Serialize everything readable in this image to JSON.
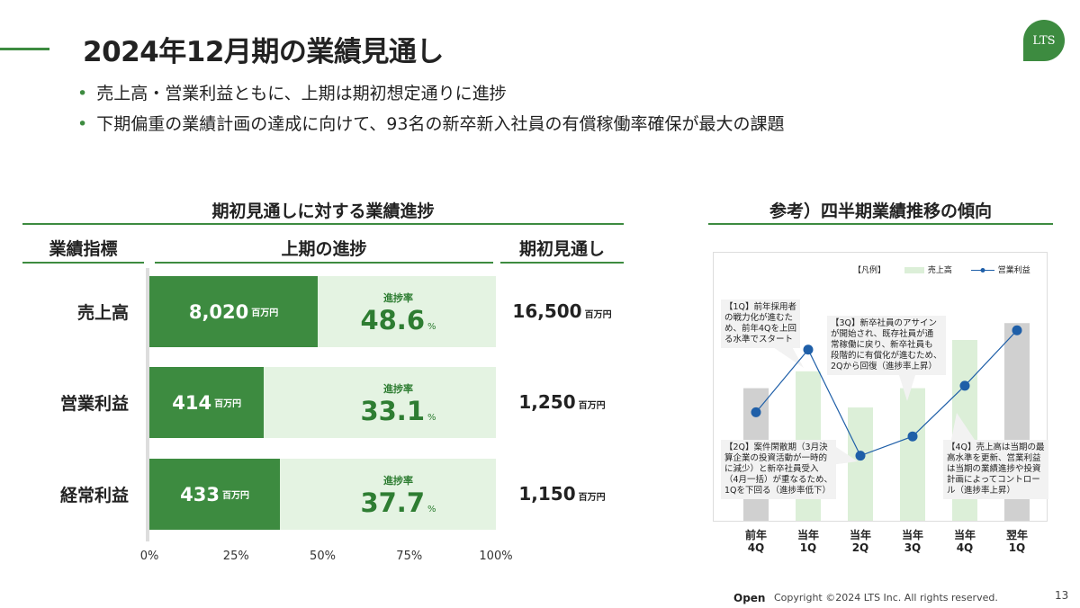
{
  "title": "2024年12月期の業績見通し",
  "logo": "LTS",
  "bullets": [
    "売上高・営業利益ともに、上期は期初想定通りに進捗",
    "下期偏重の業績計画の達成に向けて、93名の新卒新入社員の有償稼働率確保が最大の課題"
  ],
  "left_section": {
    "title": "期初見通しに対する業績進捗",
    "col_indicator": "業績指標",
    "col_progress": "上期の進捗",
    "col_target": "期初見通し"
  },
  "right_section": {
    "title": "参考）四半期業績推移の傾向"
  },
  "chart_data": [
    {
      "type": "bar",
      "orientation": "horizontal",
      "title": "期初見通しに対する業績進捗",
      "x_ticks": [
        "0%",
        "25%",
        "50%",
        "75%",
        "100%"
      ],
      "xlim": [
        0,
        100
      ],
      "rate_label": "進捗率",
      "unit": "百万円",
      "pct_unit": "%",
      "rows": [
        {
          "label": "売上高",
          "actual": "8,020",
          "rate": 48.6,
          "rate_text": "48.6",
          "target": "16,500"
        },
        {
          "label": "営業利益",
          "actual": "414",
          "rate": 33.1,
          "rate_text": "33.1",
          "target": "1,250"
        },
        {
          "label": "経常利益",
          "actual": "433",
          "rate": 37.7,
          "rate_text": "37.7",
          "target": "1,150"
        }
      ]
    },
    {
      "type": "bar+line",
      "title": "参考）四半期業績推移の傾向",
      "legend_header": "【凡例】",
      "legend": [
        {
          "name": "売上高",
          "kind": "bar",
          "color": "#dcefd8"
        },
        {
          "name": "営業利益",
          "kind": "line",
          "color": "#1f5fa8"
        }
      ],
      "categories": [
        [
          "前年",
          "4Q"
        ],
        [
          "当年",
          "1Q"
        ],
        [
          "当年",
          "2Q"
        ],
        [
          "当年",
          "3Q"
        ],
        [
          "当年",
          "4Q"
        ],
        [
          "翌年",
          "1Q"
        ]
      ],
      "bar_colors": [
        "#d0d0d0",
        "#dcefd8",
        "#dcefd8",
        "#dcefd8",
        "#dcefd8",
        "#d0d0d0"
      ],
      "sales_relative": [
        0.55,
        0.62,
        0.47,
        0.55,
        0.75,
        0.82
      ],
      "op_profit_relative": [
        0.45,
        0.71,
        0.27,
        0.35,
        0.56,
        0.79
      ],
      "notes": [
        {
          "lines": [
            "【1Q】前年採用者",
            "の戦力化が進むた",
            "め、前年4Qを上回",
            "る水準でスタート"
          ]
        },
        {
          "lines": [
            "【3Q】新卒社員のアサイン",
            "が開始され、既存社員が通",
            "常稼働に戻り、新卒社員も",
            "段階的に有償化が進むため、",
            "2Qから回復（進捗率上昇）"
          ]
        },
        {
          "lines": [
            "【2Q】案件閑散期（3月決",
            "算企業の投資活動が一時的",
            "に減少）と新卒社員受入",
            "（4月一括）が重なるため、",
            "1Qを下回る（進捗率低下）"
          ]
        },
        {
          "lines": [
            "【4Q】売上高は当期の最",
            "高水準を更新、営業利益",
            "は当期の業績進捗や投資",
            "計画によってコントロー",
            "ル（進捗率上昇）"
          ]
        }
      ]
    }
  ],
  "footer": {
    "open": "Open",
    "copyright": "Copyright ©2024 LTS Inc. All rights reserved.",
    "page": "13"
  },
  "colors": {
    "accent": "#3d8b40",
    "light_green": "#e4f3e2",
    "line": "#1f5fa8"
  }
}
